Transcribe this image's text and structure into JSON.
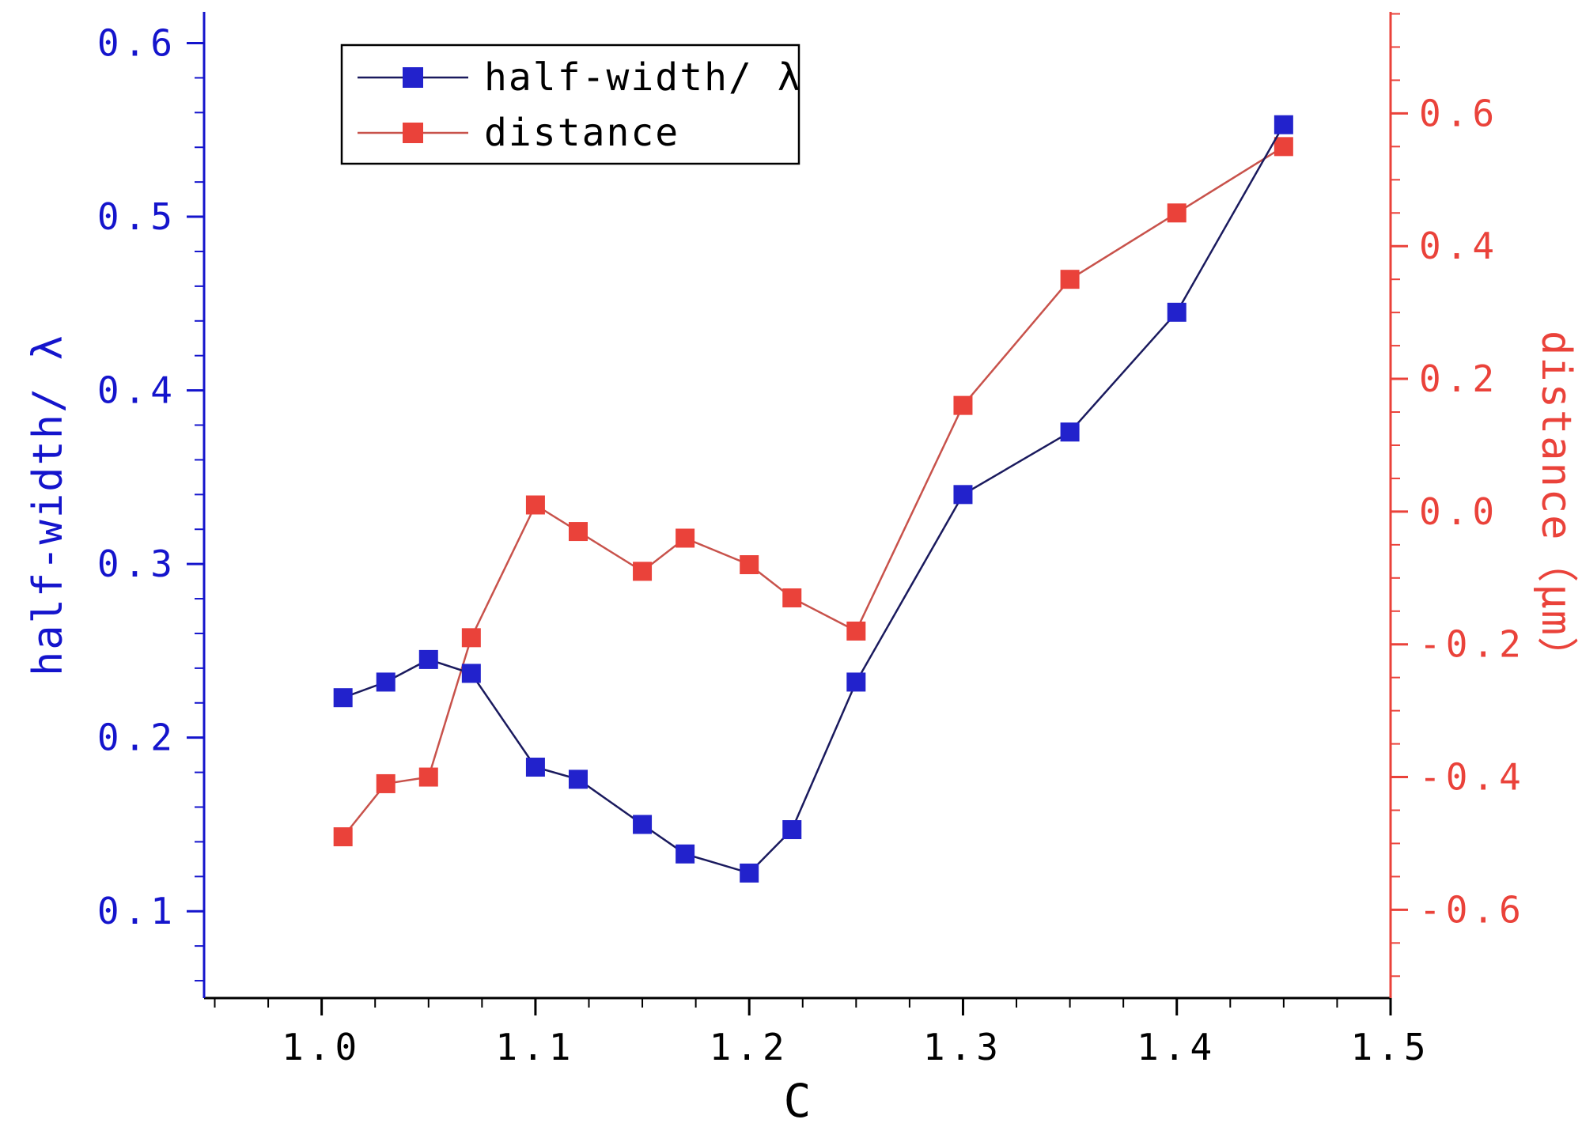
{
  "chart_data": {
    "type": "line",
    "title": "",
    "xlabel": "C",
    "ylabel_left": "half-width/ λ",
    "ylabel_right": "distance（μm）",
    "x": [
      1.01,
      1.03,
      1.05,
      1.07,
      1.1,
      1.12,
      1.15,
      1.17,
      1.2,
      1.22,
      1.25,
      1.3,
      1.35,
      1.4,
      1.45
    ],
    "series": [
      {
        "name": "half-width/ λ",
        "axis": "left",
        "values": [
          0.223,
          0.232,
          0.245,
          0.237,
          0.183,
          0.176,
          0.15,
          0.133,
          0.122,
          0.147,
          0.232,
          0.34,
          0.376,
          0.445,
          0.553
        ],
        "marker": "square",
        "marker_color": "#2222cc",
        "line_color": "#1a1a5e"
      },
      {
        "name": "distance",
        "axis": "right",
        "values": [
          -0.49,
          -0.41,
          -0.4,
          -0.19,
          0.01,
          -0.03,
          -0.09,
          -0.04,
          -0.08,
          -0.13,
          -0.18,
          0.16,
          0.35,
          0.45,
          0.55
        ],
        "marker": "square",
        "marker_color": "#ea423a",
        "line_color": "#c8524b"
      }
    ],
    "axes": {
      "x": {
        "min": 0.945,
        "max": 1.5,
        "tick_values": [
          1.0,
          1.1,
          1.2,
          1.3,
          1.4,
          1.5
        ],
        "tick_labels": [
          "1.0",
          "1.1",
          "1.2",
          "1.3",
          "1.4",
          "1.5"
        ],
        "minor_step": 0.025,
        "color": "#000000"
      },
      "left": {
        "min": 0.05,
        "max": 0.618,
        "tick_values": [
          0.1,
          0.2,
          0.3,
          0.4,
          0.5,
          0.6
        ],
        "tick_labels": [
          "0.1",
          "0.2",
          "0.3",
          "0.4",
          "0.5",
          "0.6"
        ],
        "minor_step": 0.02,
        "color": "#1414cc"
      },
      "right": {
        "min": -0.733,
        "max": 0.753,
        "tick_values": [
          0.6,
          0.4,
          0.2,
          0.0,
          -0.2,
          -0.4,
          -0.6
        ],
        "tick_labels": [
          "0.6",
          "0.4",
          "0.2",
          "0.0",
          "-0.2",
          "-0.4",
          "-0.6"
        ],
        "minor_step": 0.05,
        "color": "#ea423a"
      }
    },
    "legend": {
      "position": "top-left-inner",
      "entries": [
        "half-width/ λ",
        "distance"
      ]
    },
    "grid": false,
    "background": "#ffffff"
  }
}
